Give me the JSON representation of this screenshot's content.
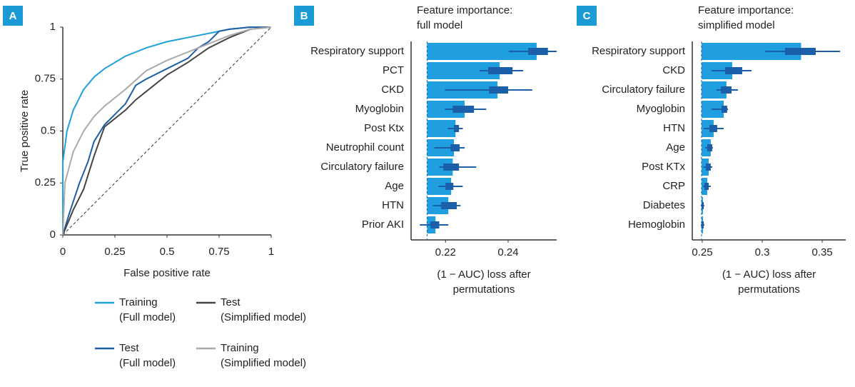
{
  "chart_data": [
    {
      "type": "line",
      "panel_label": "A",
      "x_label": "False positive rate",
      "y_label": "True positive rate",
      "xlim": [
        0,
        1
      ],
      "ylim": [
        0,
        1
      ],
      "xticks": [
        0,
        0.25,
        0.5,
        0.75,
        1
      ],
      "yticks": [
        0,
        0.25,
        0.5,
        0.75,
        1
      ],
      "series": [
        {
          "name": "Training\n(Full model)",
          "color": "#1fa0dc",
          "x": [
            0,
            0,
            0.02,
            0.05,
            0.1,
            0.15,
            0.2,
            0.3,
            0.4,
            0.5,
            0.6,
            0.7,
            0.8,
            0.9,
            1
          ],
          "values": [
            0,
            0.35,
            0.5,
            0.6,
            0.7,
            0.76,
            0.8,
            0.86,
            0.9,
            0.93,
            0.95,
            0.97,
            0.99,
            1,
            1
          ]
        },
        {
          "name": "Test\n(Full model)",
          "color": "#1f5fa8",
          "x": [
            0,
            0.03,
            0.08,
            0.12,
            0.15,
            0.2,
            0.3,
            0.35,
            0.4,
            0.5,
            0.6,
            0.65,
            0.7,
            0.75,
            0.8,
            0.9,
            1
          ],
          "values": [
            0,
            0.1,
            0.25,
            0.35,
            0.45,
            0.53,
            0.63,
            0.72,
            0.75,
            0.8,
            0.85,
            0.9,
            0.93,
            0.98,
            0.99,
            1,
            1
          ]
        },
        {
          "name": "Test\n(Simplified model)",
          "color": "#444444",
          "x": [
            0,
            0.05,
            0.1,
            0.15,
            0.2,
            0.3,
            0.35,
            0.4,
            0.5,
            0.6,
            0.7,
            0.8,
            0.9,
            1
          ],
          "values": [
            0,
            0.12,
            0.22,
            0.38,
            0.52,
            0.6,
            0.65,
            0.69,
            0.77,
            0.83,
            0.9,
            0.95,
            0.99,
            1
          ]
        },
        {
          "name": "Training\n(Simplified model)",
          "color": "#aaaaaa",
          "x": [
            0,
            0.01,
            0.05,
            0.1,
            0.15,
            0.2,
            0.3,
            0.4,
            0.5,
            0.6,
            0.7,
            0.8,
            0.9,
            1
          ],
          "values": [
            0,
            0.25,
            0.4,
            0.5,
            0.57,
            0.62,
            0.7,
            0.79,
            0.84,
            0.88,
            0.92,
            0.96,
            0.99,
            1
          ]
        }
      ]
    },
    {
      "type": "bar",
      "panel_label": "B",
      "title": "Feature importance:\nfull model",
      "x_label": "(1 − AUC) loss after\npermutations",
      "xlim": [
        0.209,
        0.2555
      ],
      "xticks": [
        0.22,
        0.24
      ],
      "baseline": 0.2141,
      "color": "#1f9fe0",
      "error_color": "#1a5fa8",
      "categories": [
        "Respiratory support",
        "PCT",
        "CKD",
        "Myoglobin",
        "Post Ktx",
        "Neutrophil count",
        "Circulatory failure",
        "Age",
        "HTN",
        "Prior AKI"
      ],
      "values": [
        0.2491,
        0.2373,
        0.2366,
        0.2261,
        0.2232,
        0.2227,
        0.2223,
        0.2218,
        0.2209,
        0.2168
      ],
      "low": [
        0.2402,
        0.2309,
        0.2198,
        0.2198,
        0.2207,
        0.2164,
        0.218,
        0.2177,
        0.2159,
        0.2118
      ],
      "q1": [
        0.2464,
        0.2336,
        0.2339,
        0.2223,
        0.2227,
        0.2216,
        0.2193,
        0.22,
        0.2186,
        0.2152
      ],
      "q3": [
        0.2527,
        0.2414,
        0.24,
        0.2291,
        0.2243,
        0.2245,
        0.2243,
        0.2225,
        0.2236,
        0.218
      ],
      "high": [
        0.2555,
        0.2448,
        0.2477,
        0.233,
        0.2255,
        0.2261,
        0.2298,
        0.2255,
        0.2248,
        0.2209
      ]
    },
    {
      "type": "bar",
      "panel_label": "C",
      "title": "Feature importance:\nsimplified model",
      "x_label": "(1 − AUC) loss after\npermutations",
      "xlim": [
        0.2417,
        0.3696
      ],
      "xticks": [
        0.25,
        0.3,
        0.35
      ],
      "baseline": 0.2494,
      "color": "#1f9fe0",
      "error_color": "#1a5fa8",
      "categories": [
        "Respiratory support",
        "CKD",
        "Circulatory failure",
        "Myoglobin",
        "HTN",
        "Age",
        "Post KTx",
        "CRP",
        "Diabetes",
        "Hemoglobin"
      ],
      "values": [
        0.3324,
        0.275,
        0.2702,
        0.2679,
        0.2595,
        0.2571,
        0.2554,
        0.2542,
        0.2506,
        0.2506
      ],
      "low": [
        0.3024,
        0.2577,
        0.2619,
        0.2577,
        0.2512,
        0.2524,
        0.2512,
        0.2506,
        0.2488,
        0.2488
      ],
      "q1": [
        0.319,
        0.269,
        0.2655,
        0.2661,
        0.256,
        0.2542,
        0.253,
        0.2518,
        0.2494,
        0.2494
      ],
      "q3": [
        0.3446,
        0.2833,
        0.2744,
        0.2708,
        0.2625,
        0.2583,
        0.2571,
        0.2554,
        0.2512,
        0.2512
      ],
      "high": [
        0.3649,
        0.2911,
        0.2798,
        0.2714,
        0.2679,
        0.2589,
        0.2583,
        0.2571,
        0.2518,
        0.2518
      ]
    }
  ]
}
